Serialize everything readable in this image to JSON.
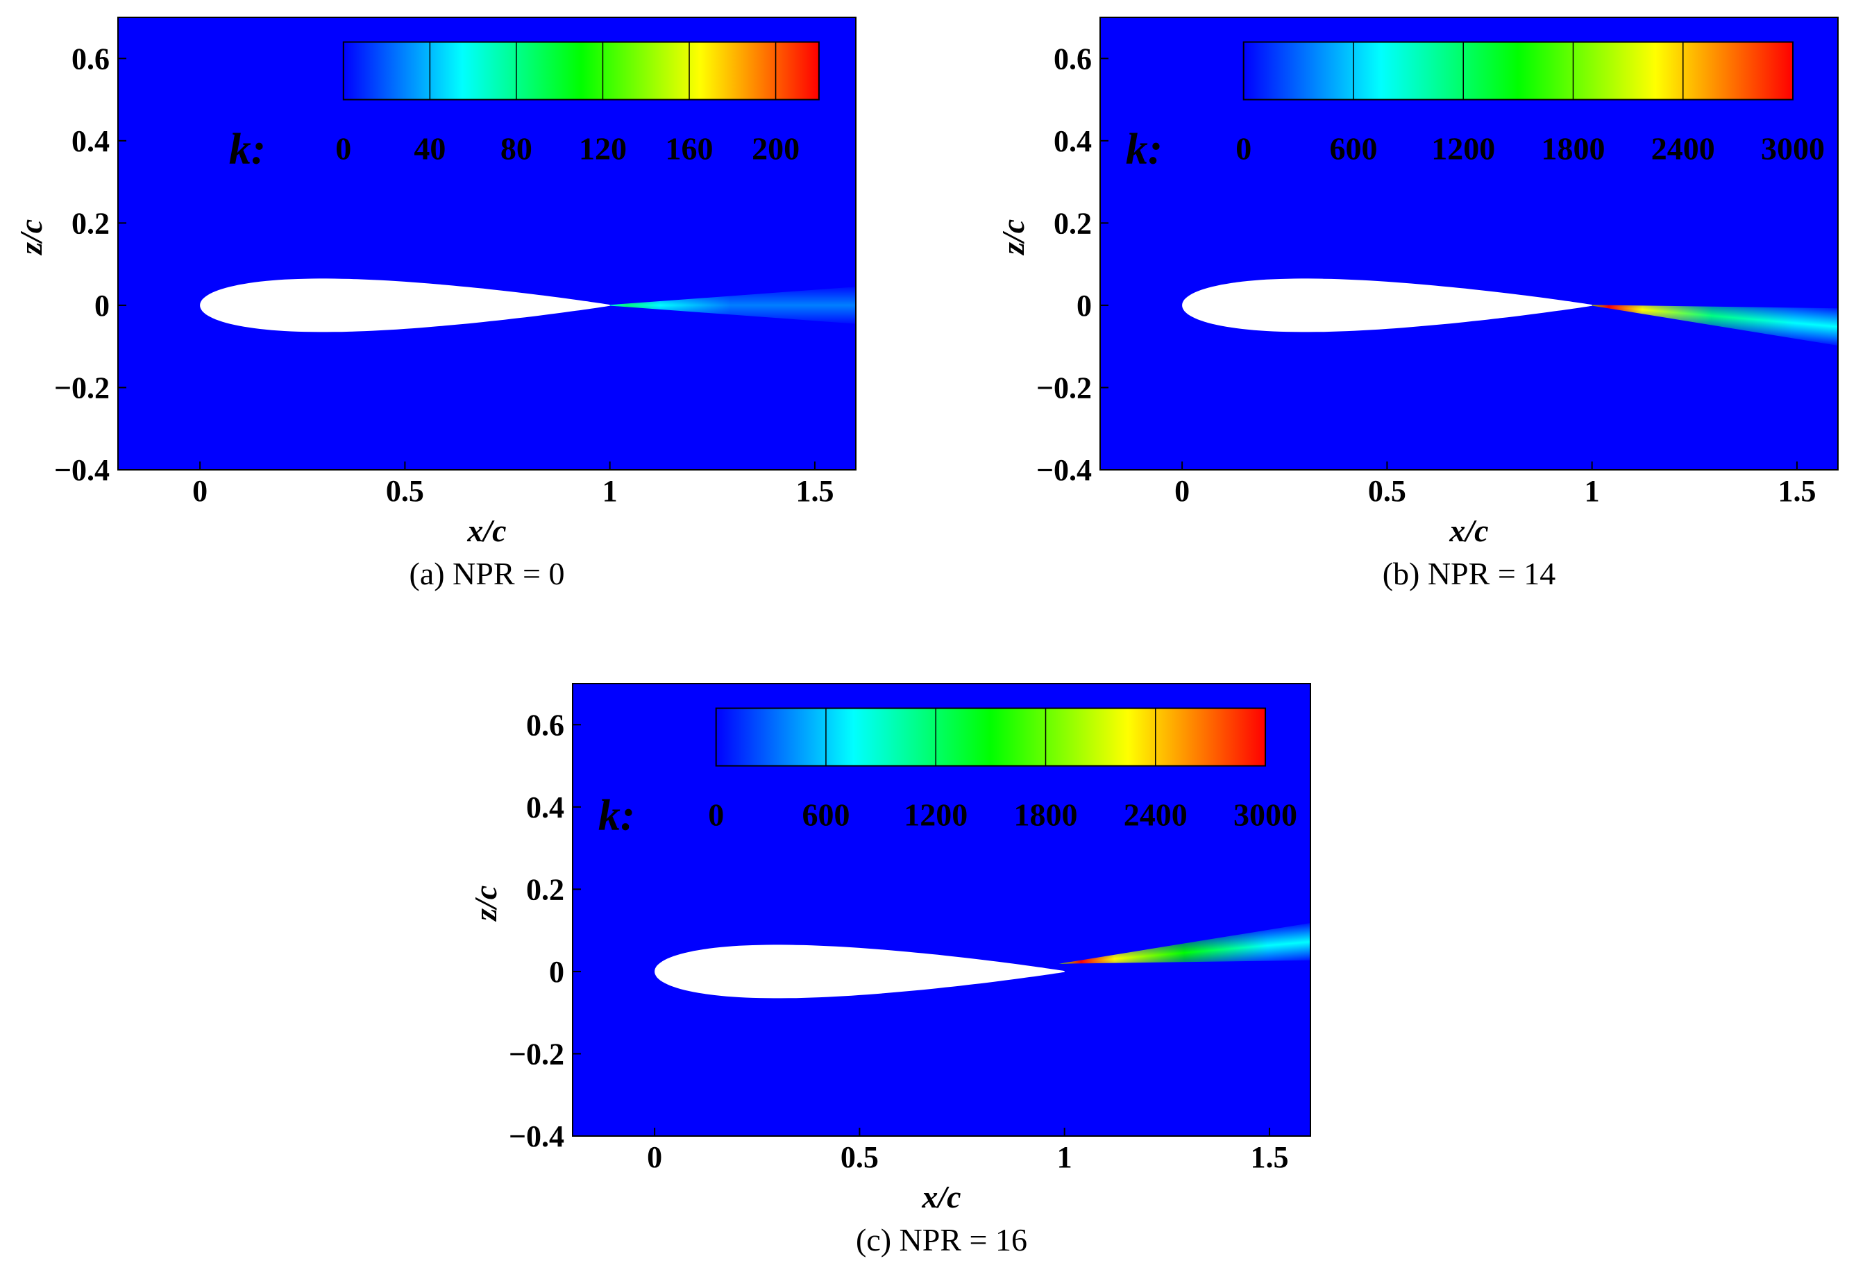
{
  "colors": {
    "field": "#0000ff",
    "airfoil": "#ffffff",
    "colormap": [
      "#0000ff",
      "#0080ff",
      "#00ffff",
      "#00ff80",
      "#00ff00",
      "#80ff00",
      "#ffff00",
      "#ff8000",
      "#ff0000"
    ]
  },
  "chart_data": [
    {
      "type": "heatmap",
      "caption": "(a) NPR = 0",
      "xlabel": "x/c",
      "ylabel": "z/c",
      "xlim": [
        -0.2,
        1.6
      ],
      "ylim": [
        -0.4,
        0.7
      ],
      "xticks": [
        0,
        0.5,
        1,
        1.5
      ],
      "xtick_labels": [
        "0",
        "0.5",
        "1",
        "1.5"
      ],
      "yticks": [
        -0.4,
        -0.2,
        0,
        0.2,
        0.4,
        0.6
      ],
      "ytick_labels": [
        "−0.4",
        "−0.2",
        "0",
        "0.2",
        "0.4",
        "0.6"
      ],
      "colorbar": {
        "title": "k:",
        "min": 0,
        "max": 220,
        "ticks": [
          0,
          40,
          80,
          120,
          160,
          200
        ],
        "tick_labels": [
          "0",
          "40",
          "80",
          "120",
          "160",
          "200"
        ]
      },
      "wake": {
        "x_start": 1.0,
        "z_start": 0.0,
        "angle_deg": 0.0,
        "peak_level": 0.35,
        "x_peak": 1.1
      }
    },
    {
      "type": "heatmap",
      "caption": "(b) NPR = 14",
      "xlabel": "x/c",
      "ylabel": "z/c",
      "xlim": [
        -0.2,
        1.6
      ],
      "ylim": [
        -0.4,
        0.7
      ],
      "xticks": [
        0,
        0.5,
        1,
        1.5
      ],
      "xtick_labels": [
        "0",
        "0.5",
        "1",
        "1.5"
      ],
      "yticks": [
        -0.4,
        -0.2,
        0,
        0.2,
        0.4,
        0.6
      ],
      "ytick_labels": [
        "−0.4",
        "−0.2",
        "0",
        "0.2",
        "0.4",
        "0.6"
      ],
      "colorbar": {
        "title": "k:",
        "min": 0,
        "max": 3000,
        "ticks": [
          0,
          600,
          1200,
          1800,
          2400,
          3000
        ],
        "tick_labels": [
          "0",
          "600",
          "1200",
          "1800",
          "2400",
          "3000"
        ]
      },
      "wake": {
        "x_start": 1.0,
        "z_start": 0.0,
        "angle_deg": -5.0,
        "peak_level": 0.95,
        "x_peak": 1.08
      }
    },
    {
      "type": "heatmap",
      "caption": "(c) NPR = 16",
      "xlabel": "x/c",
      "ylabel": "z/c",
      "xlim": [
        -0.2,
        1.6
      ],
      "ylim": [
        -0.4,
        0.7
      ],
      "xticks": [
        0,
        0.5,
        1,
        1.5
      ],
      "xtick_labels": [
        "0",
        "0.5",
        "1",
        "1.5"
      ],
      "yticks": [
        -0.4,
        -0.2,
        0,
        0.2,
        0.4,
        0.6
      ],
      "ytick_labels": [
        "−0.4",
        "−0.2",
        "0",
        "0.2",
        "0.4",
        "0.6"
      ],
      "colorbar": {
        "title": "k:",
        "min": 0,
        "max": 3000,
        "ticks": [
          0,
          600,
          1200,
          1800,
          2400,
          3000
        ],
        "tick_labels": [
          "0",
          "600",
          "1200",
          "1800",
          "2400",
          "3000"
        ]
      },
      "wake": {
        "x_start": 1.0,
        "z_start": 0.02,
        "angle_deg": 5.0,
        "peak_level": 0.98,
        "x_peak": 1.1
      }
    }
  ]
}
